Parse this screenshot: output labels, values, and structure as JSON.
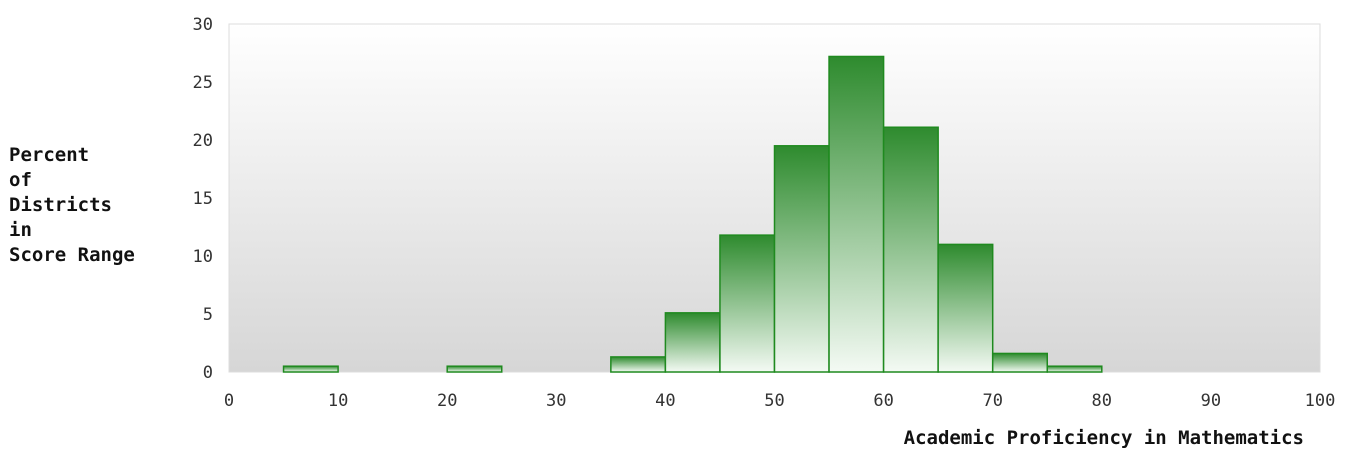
{
  "chart_data": {
    "type": "bar",
    "title": "",
    "xlabel": "Academic Proficiency in Mathematics",
    "ylabel_lines": [
      "Percent",
      "of",
      "Districts",
      "in",
      "Score Range"
    ],
    "xlim": [
      0,
      100
    ],
    "ylim": [
      0,
      30
    ],
    "x_ticks": [
      0,
      10,
      20,
      30,
      40,
      50,
      60,
      70,
      80,
      90,
      100
    ],
    "y_ticks": [
      0,
      5,
      10,
      15,
      20,
      25,
      30
    ],
    "bin_width": 5,
    "bins": [
      {
        "start": 5,
        "value": 0.5
      },
      {
        "start": 20,
        "value": 0.5
      },
      {
        "start": 35,
        "value": 1.3
      },
      {
        "start": 40,
        "value": 5.1
      },
      {
        "start": 45,
        "value": 11.8
      },
      {
        "start": 50,
        "value": 19.5
      },
      {
        "start": 55,
        "value": 27.2
      },
      {
        "start": 60,
        "value": 21.1
      },
      {
        "start": 65,
        "value": 11.0
      },
      {
        "start": 70,
        "value": 1.6
      },
      {
        "start": 75,
        "value": 0.5
      }
    ],
    "bar_color": "#2e8b2e",
    "bar_edge_color": "#1f8a1f",
    "background_top": "#ffffff",
    "background_bottom": "#d6d6d6",
    "grid": false
  }
}
